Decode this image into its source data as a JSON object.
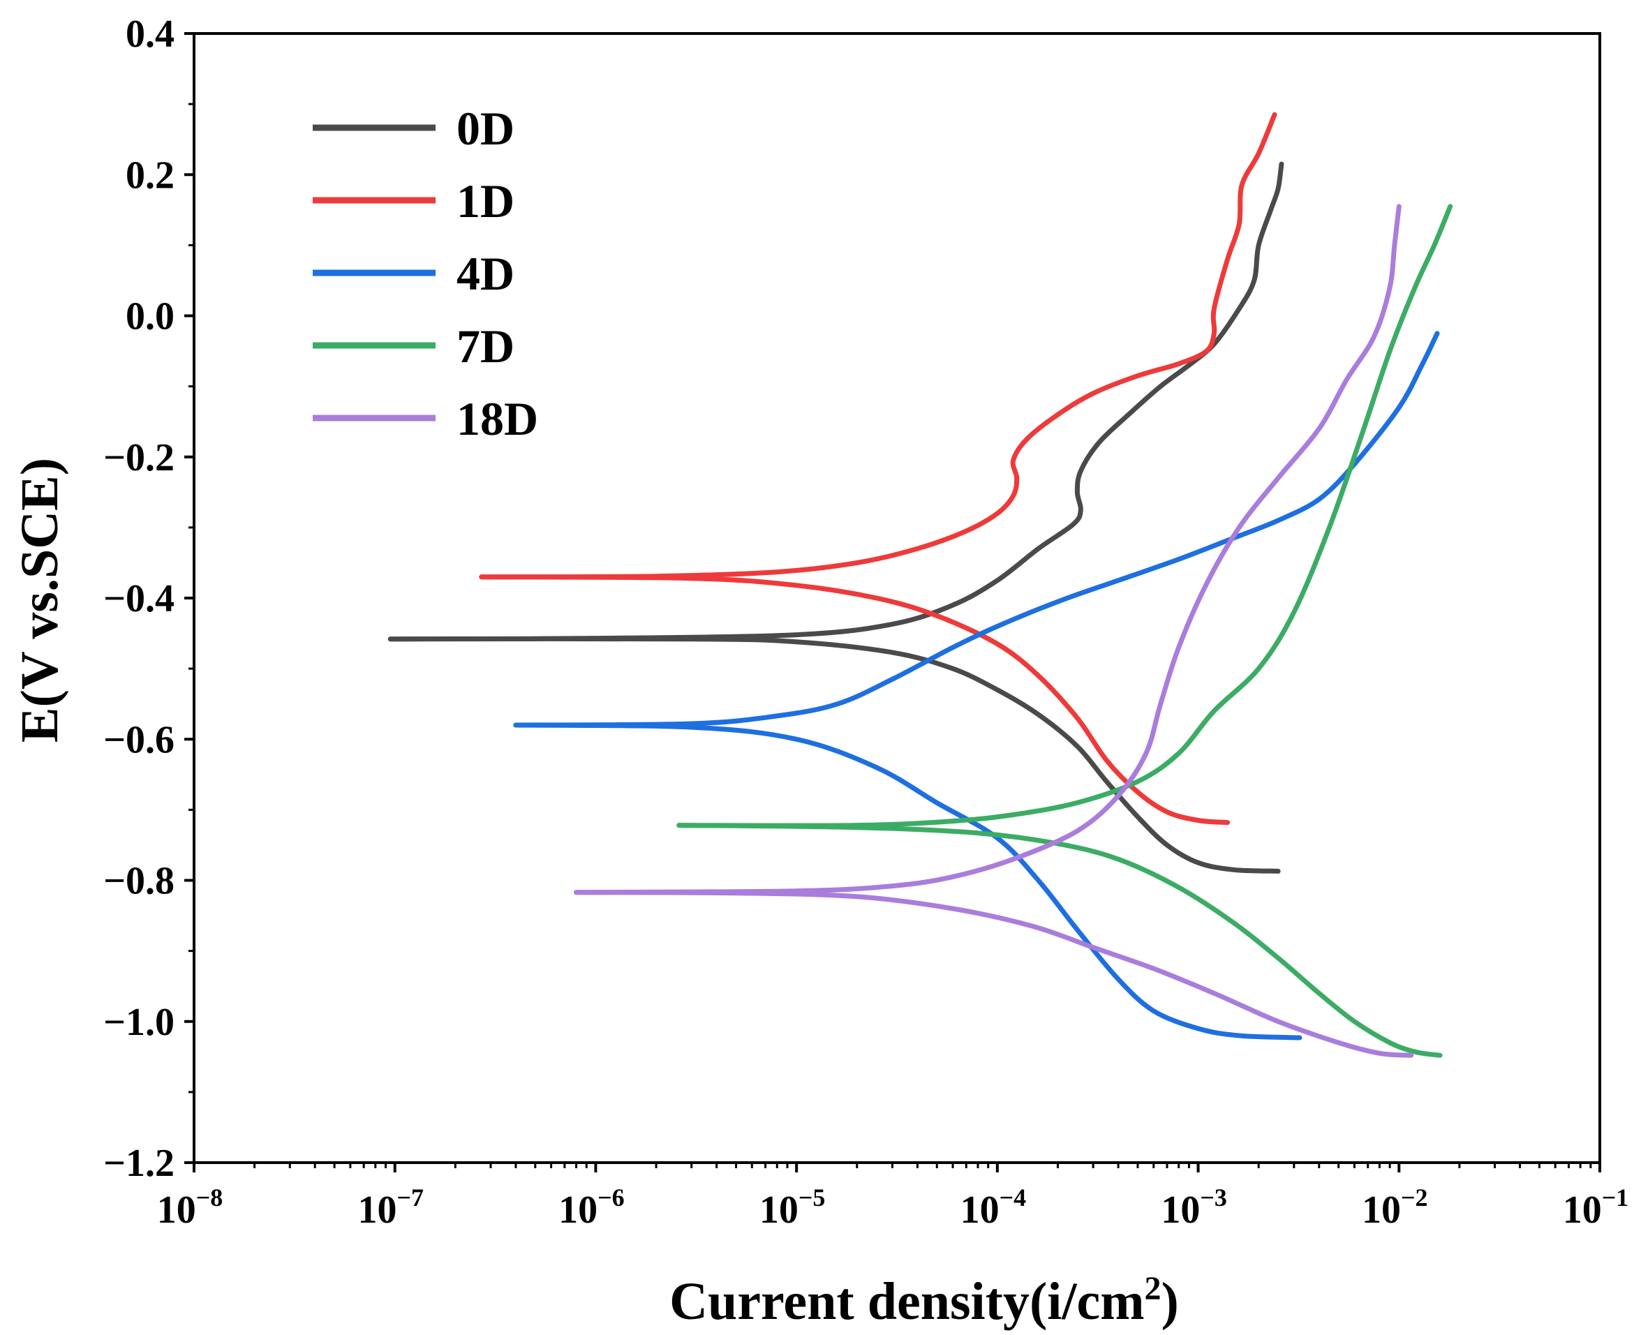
{
  "chart_data": {
    "type": "line",
    "title": "",
    "xlabel": "Current density(i/cm",
    "xlabel_sup": "2",
    "xlabel_end": ")",
    "ylabel": "E(V vs.SCE)",
    "xscale": "log",
    "xlim": [
      1e-08,
      0.1
    ],
    "ylim": [
      -1.2,
      0.4
    ],
    "x_ticks": [
      {
        "base": "10",
        "exp": "−8",
        "value": 1e-08
      },
      {
        "base": "10",
        "exp": "−7",
        "value": 1e-07
      },
      {
        "base": "10",
        "exp": "−6",
        "value": 1e-06
      },
      {
        "base": "10",
        "exp": "−5",
        "value": 1e-05
      },
      {
        "base": "10",
        "exp": "−4",
        "value": 0.0001
      },
      {
        "base": "10",
        "exp": "−3",
        "value": 0.001
      },
      {
        "base": "10",
        "exp": "−2",
        "value": 0.01
      },
      {
        "base": "10",
        "exp": "−1",
        "value": 0.1
      }
    ],
    "y_ticks": [
      {
        "label": "0.4",
        "value": 0.4
      },
      {
        "label": "0.2",
        "value": 0.2
      },
      {
        "label": "0.0",
        "value": 0.0
      },
      {
        "label": "−0.2",
        "value": -0.2
      },
      {
        "label": "−0.4",
        "value": -0.4
      },
      {
        "label": "−0.6",
        "value": -0.6
      },
      {
        "label": "−0.8",
        "value": -0.8
      },
      {
        "label": "−1.0",
        "value": -1.0
      },
      {
        "label": "−1.2",
        "value": -1.2
      }
    ],
    "legend_position": "top-left",
    "grid": false,
    "series": [
      {
        "name": "0D",
        "color": "#4a4a4a",
        "anodic": [
          [
            9.5e-08,
            -0.458
          ],
          [
            1e-06,
            -0.457
          ],
          [
            1e-05,
            -0.452
          ],
          [
            3e-05,
            -0.437
          ],
          [
            6e-05,
            -0.41
          ],
          [
            0.0001,
            -0.375
          ],
          [
            0.00016,
            -0.33
          ],
          [
            0.00024,
            -0.295
          ],
          [
            0.00026,
            -0.275
          ],
          [
            0.00025,
            -0.25
          ],
          [
            0.00026,
            -0.22
          ],
          [
            0.00032,
            -0.18
          ],
          [
            0.00045,
            -0.14
          ],
          [
            0.00065,
            -0.1
          ],
          [
            0.0009,
            -0.07
          ],
          [
            0.0012,
            -0.04
          ],
          [
            0.0016,
            0.01
          ],
          [
            0.0019,
            0.05
          ],
          [
            0.002,
            0.1
          ],
          [
            0.0023,
            0.15
          ],
          [
            0.0025,
            0.18
          ],
          [
            0.0026,
            0.215
          ]
        ],
        "cathodic": [
          [
            9.5e-08,
            -0.458
          ],
          [
            3e-06,
            -0.458
          ],
          [
            1e-05,
            -0.462
          ],
          [
            3e-05,
            -0.477
          ],
          [
            6e-05,
            -0.5
          ],
          [
            0.0001,
            -0.53
          ],
          [
            0.00016,
            -0.565
          ],
          [
            0.00025,
            -0.61
          ],
          [
            0.00035,
            -0.66
          ],
          [
            0.0005,
            -0.71
          ],
          [
            0.0007,
            -0.75
          ],
          [
            0.001,
            -0.775
          ],
          [
            0.0015,
            -0.785
          ],
          [
            0.0025,
            -0.787
          ]
        ]
      },
      {
        "name": "1D",
        "color": "#ee3a3a",
        "anodic": [
          [
            2.7e-07,
            -0.37
          ],
          [
            2e-06,
            -0.369
          ],
          [
            8e-06,
            -0.363
          ],
          [
            2e-05,
            -0.35
          ],
          [
            4e-05,
            -0.33
          ],
          [
            7e-05,
            -0.305
          ],
          [
            0.0001,
            -0.28
          ],
          [
            0.00012,
            -0.255
          ],
          [
            0.000125,
            -0.23
          ],
          [
            0.00012,
            -0.205
          ],
          [
            0.00014,
            -0.175
          ],
          [
            0.0002,
            -0.14
          ],
          [
            0.0003,
            -0.11
          ],
          [
            0.0005,
            -0.085
          ],
          [
            0.0008,
            -0.068
          ],
          [
            0.0011,
            -0.05
          ],
          [
            0.0012,
            -0.025
          ],
          [
            0.0012,
            0.01
          ],
          [
            0.0014,
            0.08
          ],
          [
            0.0016,
            0.13
          ],
          [
            0.00165,
            0.185
          ],
          [
            0.002,
            0.23
          ],
          [
            0.0024,
            0.285
          ]
        ],
        "cathodic": [
          [
            2.7e-07,
            -0.37
          ],
          [
            3e-06,
            -0.372
          ],
          [
            1e-05,
            -0.382
          ],
          [
            2.5e-05,
            -0.4
          ],
          [
            5e-05,
            -0.425
          ],
          [
            0.0001,
            -0.465
          ],
          [
            0.00016,
            -0.51
          ],
          [
            0.00025,
            -0.57
          ],
          [
            0.00035,
            -0.63
          ],
          [
            0.0005,
            -0.675
          ],
          [
            0.0007,
            -0.703
          ],
          [
            0.001,
            -0.715
          ],
          [
            0.0014,
            -0.718
          ]
        ]
      },
      {
        "name": "4D",
        "color": "#1e6fe0",
        "anodic": [
          [
            4e-07,
            -0.58
          ],
          [
            3e-06,
            -0.578
          ],
          [
            8e-06,
            -0.567
          ],
          [
            1.6e-05,
            -0.55
          ],
          [
            3e-05,
            -0.515
          ],
          [
            6e-05,
            -0.47
          ],
          [
            0.0001,
            -0.44
          ],
          [
            0.0002,
            -0.405
          ],
          [
            0.0004,
            -0.375
          ],
          [
            0.0008,
            -0.345
          ],
          [
            0.0015,
            -0.315
          ],
          [
            0.0025,
            -0.29
          ],
          [
            0.004,
            -0.26
          ],
          [
            0.006,
            -0.21
          ],
          [
            0.01,
            -0.13
          ],
          [
            0.013,
            -0.07
          ],
          [
            0.0155,
            -0.025
          ]
        ],
        "cathodic": [
          [
            4e-07,
            -0.58
          ],
          [
            3e-06,
            -0.583
          ],
          [
            1e-05,
            -0.6
          ],
          [
            2.5e-05,
            -0.64
          ],
          [
            5e-05,
            -0.69
          ],
          [
            0.0001,
            -0.74
          ],
          [
            0.00016,
            -0.8
          ],
          [
            0.00025,
            -0.87
          ],
          [
            0.0004,
            -0.94
          ],
          [
            0.0006,
            -0.985
          ],
          [
            0.001,
            -1.01
          ],
          [
            0.0016,
            -1.02
          ],
          [
            0.0032,
            -1.023
          ]
        ]
      },
      {
        "name": "7D",
        "color": "#3cac64",
        "anodic": [
          [
            2.6e-06,
            -0.722
          ],
          [
            2e-05,
            -0.722
          ],
          [
            6e-05,
            -0.716
          ],
          [
            0.00012,
            -0.707
          ],
          [
            0.00025,
            -0.69
          ],
          [
            0.0005,
            -0.66
          ],
          [
            0.0008,
            -0.62
          ],
          [
            0.0012,
            -0.56
          ],
          [
            0.002,
            -0.5
          ],
          [
            0.003,
            -0.42
          ],
          [
            0.0045,
            -0.3
          ],
          [
            0.0065,
            -0.17
          ],
          [
            0.009,
            -0.05
          ],
          [
            0.012,
            0.04
          ],
          [
            0.015,
            0.1
          ],
          [
            0.018,
            0.155
          ]
        ],
        "cathodic": [
          [
            2.6e-06,
            -0.722
          ],
          [
            2e-05,
            -0.725
          ],
          [
            8e-05,
            -0.733
          ],
          [
            0.0002,
            -0.748
          ],
          [
            0.0004,
            -0.77
          ],
          [
            0.0008,
            -0.81
          ],
          [
            0.0015,
            -0.86
          ],
          [
            0.0025,
            -0.91
          ],
          [
            0.004,
            -0.96
          ],
          [
            0.006,
            -1.0
          ],
          [
            0.009,
            -1.03
          ],
          [
            0.012,
            -1.043
          ],
          [
            0.016,
            -1.048
          ]
        ]
      },
      {
        "name": "18D",
        "color": "#a97ddc",
        "anodic": [
          [
            8e-07,
            -0.817
          ],
          [
            1e-05,
            -0.815
          ],
          [
            3e-05,
            -0.808
          ],
          [
            6e-05,
            -0.795
          ],
          [
            0.00012,
            -0.77
          ],
          [
            0.00025,
            -0.73
          ],
          [
            0.0004,
            -0.68
          ],
          [
            0.00055,
            -0.62
          ],
          [
            0.00065,
            -0.55
          ],
          [
            0.0008,
            -0.47
          ],
          [
            0.0011,
            -0.38
          ],
          [
            0.0016,
            -0.3
          ],
          [
            0.0025,
            -0.23
          ],
          [
            0.004,
            -0.16
          ],
          [
            0.0055,
            -0.09
          ],
          [
            0.0075,
            -0.03
          ],
          [
            0.009,
            0.04
          ],
          [
            0.0095,
            0.1
          ],
          [
            0.01,
            0.155
          ]
        ],
        "cathodic": [
          [
            8e-07,
            -0.817
          ],
          [
            5e-06,
            -0.818
          ],
          [
            2e-05,
            -0.823
          ],
          [
            6e-05,
            -0.84
          ],
          [
            0.00015,
            -0.865
          ],
          [
            0.0003,
            -0.895
          ],
          [
            0.0006,
            -0.925
          ],
          [
            0.0012,
            -0.96
          ],
          [
            0.0025,
            -1.0
          ],
          [
            0.005,
            -1.03
          ],
          [
            0.008,
            -1.045
          ],
          [
            0.0115,
            -1.048
          ]
        ]
      }
    ]
  }
}
